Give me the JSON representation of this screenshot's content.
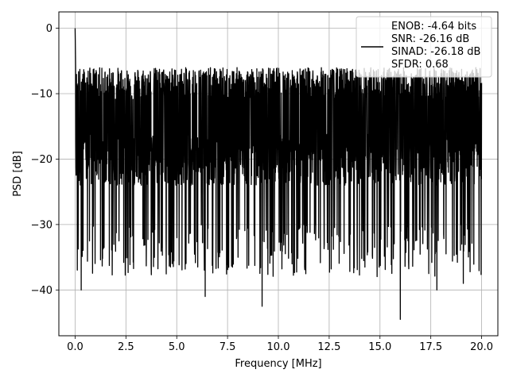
{
  "chart_data": {
    "type": "line",
    "xlabel": "Frequency [MHz]",
    "ylabel": "PSD [dB]",
    "xlim": [
      -0.8,
      20.8
    ],
    "ylim": [
      -47,
      2.5
    ],
    "xticks": [
      0.0,
      2.5,
      5.0,
      7.5,
      10.0,
      12.5,
      15.0,
      17.5,
      20.0
    ],
    "xtick_labels": [
      "0.0",
      "2.5",
      "5.0",
      "7.5",
      "10.0",
      "12.5",
      "15.0",
      "17.5",
      "20.0"
    ],
    "yticks": [
      0,
      -10,
      -20,
      -30,
      -40
    ],
    "ytick_labels": [
      "0",
      "−10",
      "−20",
      "−30",
      "−40"
    ],
    "grid": true,
    "legend_position": "top-right",
    "legend_lines": [
      "ENOB: -4.64 bits",
      "SNR: -26.16 dB",
      "SINAD: -26.18 dB",
      "SFDR: 0.68"
    ],
    "series_color": "#000000",
    "series": [
      {
        "description": "noise-like PSD trace, band between approximately -8 and -30 dB across 0 to 20 MHz",
        "x_range": [
          0.0,
          20.0
        ],
        "band_upper_approx": -5,
        "band_lower_approx": -28,
        "peak_start_value": 0,
        "notable_dips": [
          {
            "x": 0.3,
            "y": -40
          },
          {
            "x": 6.4,
            "y": -41
          },
          {
            "x": 9.2,
            "y": -42.5
          },
          {
            "x": 16.0,
            "y": -44.5
          },
          {
            "x": 17.8,
            "y": -40
          },
          {
            "x": 19.1,
            "y": -39
          }
        ]
      }
    ]
  }
}
